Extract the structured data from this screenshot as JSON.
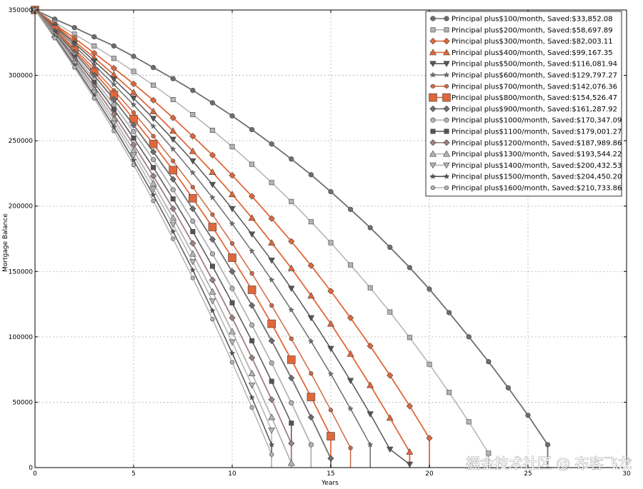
{
  "watermark": "掘金技术社区 @ 布客飞龙",
  "chart_data": {
    "type": "line",
    "xlabel": "Years",
    "ylabel": "Mortgage Balance",
    "xlim": [
      0,
      30
    ],
    "ylim": [
      0,
      350000
    ],
    "xticks": [
      0,
      5,
      10,
      15,
      20,
      25,
      30
    ],
    "yticks": [
      0,
      50000,
      100000,
      150000,
      200000,
      250000,
      300000,
      350000
    ],
    "grid": true,
    "legend_position": "top-right",
    "start_balance": 350000,
    "series": [
      {
        "name": "Principal plus$100/month, Saved:$33,852.08",
        "label": "Principal plus$100/month, Saved:$33,852.08",
        "marker": "circle",
        "color": "#6e6e6e",
        "values": [
          350000,
          343000,
          336500,
          329500,
          322500,
          314500,
          306000,
          297500,
          288500,
          279000,
          269000,
          258500,
          247500,
          236000,
          224000,
          211000,
          197500,
          183500,
          168500,
          153000,
          136500,
          118500,
          100000,
          81000,
          61000,
          40000,
          17500
        ]
      },
      {
        "name": "Principal plus$200/month, Saved:$58,697.89",
        "label": "Principal plus$200/month, Saved:$58,697.89",
        "marker": "square",
        "color": "#b3b3b3",
        "values": [
          350000,
          340500,
          331500,
          322500,
          313000,
          303000,
          292500,
          281500,
          270000,
          258000,
          245500,
          232000,
          218000,
          203500,
          188000,
          172000,
          155000,
          137500,
          119000,
          99500,
          79000,
          57500,
          35000,
          11000
        ]
      },
      {
        "name": "Principal plus$300/month, Saved:$82,003.11",
        "label": "Principal plus$300/month, Saved:$82,003.11",
        "marker": "diamond",
        "color": "#e0673a",
        "values": [
          350000,
          339000,
          328500,
          317000,
          305500,
          293500,
          281000,
          267500,
          253500,
          239000,
          223500,
          207500,
          190500,
          173000,
          154500,
          135000,
          114500,
          93000,
          70500,
          47000,
          22500
        ]
      },
      {
        "name": "Principal plus$400/month, Saved:$99,167.35",
        "label": "Principal plus$400/month, Saved:$99,167.35",
        "marker": "triangle-up",
        "color": "#e0673a",
        "values": [
          350000,
          338500,
          326000,
          313500,
          300500,
          287000,
          272500,
          257500,
          242000,
          226000,
          209000,
          191000,
          172000,
          152500,
          131500,
          110000,
          87000,
          63000,
          38000,
          12000
        ]
      },
      {
        "name": "Principal plus$500/month, Saved:$116,081.94",
        "label": "Principal plus$500/month, Saved:$116,081.94",
        "marker": "triangle-down",
        "color": "#555555",
        "values": [
          350000,
          337500,
          324500,
          311000,
          297000,
          282500,
          267000,
          251000,
          234500,
          216500,
          198000,
          178500,
          158500,
          137000,
          114500,
          91000,
          66500,
          41000,
          14000,
          2500
        ]
      },
      {
        "name": "Principal plus$600/month, Saved:$129,797.27",
        "label": "Principal plus$600/month, Saved:$129,797.27",
        "marker": "star",
        "color": "#6e6e6e",
        "values": [
          350000,
          336500,
          322500,
          308000,
          293000,
          277500,
          261000,
          243500,
          225500,
          206500,
          186500,
          165500,
          143500,
          120500,
          96500,
          71500,
          45000,
          17500
        ]
      },
      {
        "name": "Principal plus$700/month, Saved:$142,076.36",
        "label": "Principal plus$700/month, Saved:$142,076.36",
        "marker": "hexagon",
        "color": "#d06a42",
        "values": [
          350000,
          335500,
          320500,
          305000,
          288500,
          271500,
          253500,
          234500,
          214500,
          193500,
          171500,
          148500,
          124000,
          98500,
          72000,
          44000,
          15000
        ]
      },
      {
        "name": "Principal plus$800/month, Saved:$154,526.47",
        "label": "Principal plus$800/month, Saved:$154,526.47",
        "marker": "square-big",
        "color": "#e0673a",
        "values": [
          350000,
          335000,
          319000,
          302500,
          285000,
          266500,
          247500,
          227500,
          206000,
          184000,
          160500,
          136000,
          110000,
          82500,
          54000,
          24000
        ]
      },
      {
        "name": "Principal plus$900/month, Saved:$161,287.92",
        "label": "Principal plus$900/month, Saved:$161,287.92",
        "marker": "diamond",
        "color": "#6e6e6e",
        "values": [
          350000,
          334000,
          317500,
          300000,
          281500,
          262000,
          241500,
          220500,
          198000,
          174500,
          150000,
          124000,
          97000,
          68500,
          38500,
          7000
        ]
      },
      {
        "name": "Principal plus$1000/month, Saved:$170,347.09",
        "label": "Principal plus$1000/month, Saved:$170,347.09",
        "marker": "circle",
        "color": "#b3b3b3",
        "values": [
          350000,
          333000,
          315500,
          297000,
          277500,
          257000,
          235500,
          212500,
          188500,
          163500,
          137000,
          109000,
          80000,
          49500,
          17500
        ]
      },
      {
        "name": "Principal plus$1100/month, Saved:$179,001.27",
        "label": "Principal plus$1100/month, Saved:$179,001.27",
        "marker": "square",
        "color": "#555555",
        "values": [
          350000,
          332500,
          314000,
          294500,
          274000,
          252000,
          229500,
          205500,
          180500,
          154000,
          126000,
          97000,
          66000,
          34000
        ]
      },
      {
        "name": "Principal plus$1200/month, Saved:$187,989.86",
        "label": "Principal plus$1200/month, Saved:$187,989.86",
        "marker": "diamond",
        "color": "#a08080",
        "values": [
          350000,
          331500,
          312000,
          291500,
          270000,
          247000,
          223000,
          198000,
          171500,
          143500,
          114500,
          84000,
          52000,
          18500
        ]
      },
      {
        "name": "Principal plus$1300/month, Saved:$193,544.22",
        "label": "Principal plus$1300/month, Saved:$193,544.22",
        "marker": "triangle-up",
        "color": "#b3b3b3",
        "values": [
          350000,
          331000,
          310500,
          289000,
          266500,
          242500,
          217500,
          191000,
          163500,
          134500,
          104000,
          72000,
          38500,
          3500
        ]
      },
      {
        "name": "Principal plus$1400/month, Saved:$200,432.53",
        "label": "Principal plus$1400/month, Saved:$200,432.53",
        "marker": "triangle-down",
        "color": "#b3b3b3",
        "values": [
          350000,
          330000,
          309000,
          287000,
          263500,
          239000,
          213000,
          186000,
          157500,
          127500,
          96000,
          63000,
          28500
        ]
      },
      {
        "name": "Principal plus$1500/month, Saved:$204,450.20",
        "label": "Principal plus$1500/month, Saved:$204,450.20",
        "marker": "star",
        "color": "#555555",
        "values": [
          350000,
          329500,
          307500,
          284500,
          260500,
          235000,
          208500,
          180500,
          151000,
          120000,
          87500,
          53500,
          17500
        ]
      },
      {
        "name": "Principal plus$1600/month, Saved:$210,733.86",
        "label": "Principal plus$1600/month, Saved:$210,733.86",
        "marker": "hexagon",
        "color": "#b3b3b3",
        "values": [
          350000,
          328500,
          306000,
          282500,
          257500,
          231500,
          204000,
          175000,
          145000,
          113500,
          80500,
          46000,
          10000
        ]
      }
    ]
  }
}
